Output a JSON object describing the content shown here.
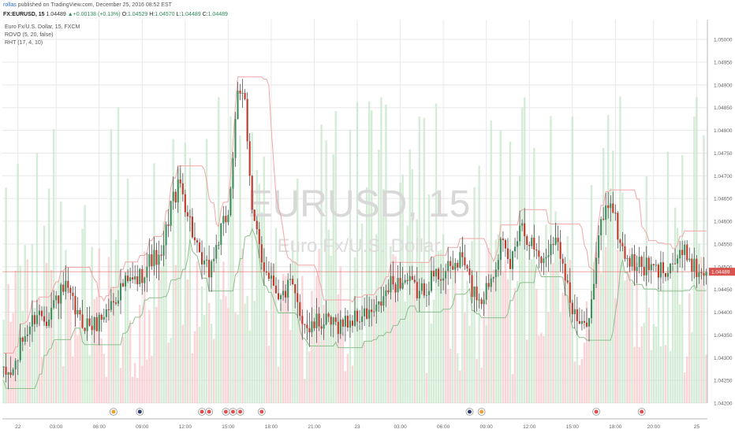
{
  "header": {
    "author": "rollas",
    "published": "published on TradingView.com, December 25, 2016 08:52 EST",
    "symbol": "FX:EURUSD, 15",
    "last": "1.04489",
    "change_arrow": "▲",
    "change": "+0.00138 (+0.13%)",
    "open_label": "O:",
    "open": "1.04529",
    "high_label": "H:",
    "high": "1.04570",
    "low_label": "L:",
    "low": "1.04489",
    "close_label": "C:",
    "close": "1.04489"
  },
  "legend": {
    "instrument": "Euro Fx/U.S. Dollar, 15, FXCM",
    "indicator1": "ROVO (5, 20, false)",
    "indicator2": "RHT (17, 4, 10)"
  },
  "watermark": {
    "line1": "EURUSD, 15",
    "line2": "Euro Fx/U.S. Dollar"
  },
  "colors": {
    "up": "#3d8f5c",
    "down": "#c0392b",
    "grid": "#e8e8e8",
    "vol_up": "#c7e6c9",
    "vol_down": "#f8c7c9",
    "price_tag": "#d9534f"
  },
  "chart_data": {
    "type": "candlestick",
    "ylim": [
      1.042,
      1.0504
    ],
    "y_ticks": [
      "1.04200",
      "1.04250",
      "1.04300",
      "1.04350",
      "1.04400",
      "1.04450",
      "1.04500",
      "1.04550",
      "1.04600",
      "1.04650",
      "1.04700",
      "1.04750",
      "1.04800",
      "1.04850",
      "1.04900",
      "1.04950",
      "1.05000"
    ],
    "current_price": "1.04489",
    "x_ticks": [
      "22",
      "03:00",
      "06:00",
      "09:00",
      "12:00",
      "15:00",
      "18:00",
      "21:00",
      "23",
      "03:00",
      "06:00",
      "09:00",
      "12:00",
      "15:00",
      "18:00",
      "20:00",
      "25"
    ],
    "x_tick_bars": [
      6,
      22,
      40,
      58,
      76,
      94,
      112,
      130,
      148,
      166,
      184,
      202,
      220,
      238,
      256,
      272,
      290
    ],
    "events": [
      {
        "bar": 46,
        "flag": "eu"
      },
      {
        "bar": 57,
        "flag": "jp"
      },
      {
        "bar": 83,
        "flag": "us"
      },
      {
        "bar": 86,
        "flag": "us"
      },
      {
        "bar": 93,
        "flag": "us"
      },
      {
        "bar": 96,
        "flag": "us"
      },
      {
        "bar": 99,
        "flag": "us"
      },
      {
        "bar": 108,
        "flag": "us"
      },
      {
        "bar": 195,
        "flag": "jp"
      },
      {
        "bar": 200,
        "flag": "eu"
      },
      {
        "bar": 248,
        "flag": "us"
      },
      {
        "bar": 267,
        "flag": "us"
      }
    ],
    "series_note": "candles generated from keypoints (bar index, close price)",
    "keypoints": [
      [
        0,
        1.0426
      ],
      [
        4,
        1.0427
      ],
      [
        8,
        1.0434
      ],
      [
        14,
        1.044
      ],
      [
        18,
        1.0439
      ],
      [
        22,
        1.0443
      ],
      [
        26,
        1.0445
      ],
      [
        32,
        1.0438
      ],
      [
        38,
        1.0437
      ],
      [
        44,
        1.0441
      ],
      [
        50,
        1.0446
      ],
      [
        56,
        1.0447
      ],
      [
        62,
        1.0452
      ],
      [
        66,
        1.0451
      ],
      [
        70,
        1.0464
      ],
      [
        74,
        1.0468
      ],
      [
        78,
        1.046
      ],
      [
        82,
        1.0451
      ],
      [
        86,
        1.0449
      ],
      [
        90,
        1.0456
      ],
      [
        94,
        1.0462
      ],
      [
        98,
        1.0487
      ],
      [
        101,
        1.0488
      ],
      [
        104,
        1.0462
      ],
      [
        108,
        1.0451
      ],
      [
        112,
        1.0448
      ],
      [
        116,
        1.0443
      ],
      [
        120,
        1.0446
      ],
      [
        124,
        1.044
      ],
      [
        128,
        1.0436
      ],
      [
        132,
        1.0438
      ],
      [
        138,
        1.0437
      ],
      [
        144,
        1.0438
      ],
      [
        150,
        1.0439
      ],
      [
        156,
        1.044
      ],
      [
        162,
        1.0446
      ],
      [
        168,
        1.0447
      ],
      [
        174,
        1.0444
      ],
      [
        180,
        1.0448
      ],
      [
        186,
        1.0449
      ],
      [
        192,
        1.0452
      ],
      [
        196,
        1.0445
      ],
      [
        200,
        1.0443
      ],
      [
        204,
        1.0448
      ],
      [
        208,
        1.0455
      ],
      [
        212,
        1.045
      ],
      [
        216,
        1.046
      ],
      [
        220,
        1.0456
      ],
      [
        226,
        1.0451
      ],
      [
        230,
        1.0457
      ],
      [
        234,
        1.0452
      ],
      [
        238,
        1.044
      ],
      [
        242,
        1.0436
      ],
      [
        246,
        1.0442
      ],
      [
        250,
        1.046
      ],
      [
        254,
        1.0465
      ],
      [
        258,
        1.0455
      ],
      [
        262,
        1.0451
      ],
      [
        268,
        1.045
      ],
      [
        274,
        1.0449
      ],
      [
        280,
        1.0451
      ],
      [
        286,
        1.0453
      ],
      [
        290,
        1.0449
      ]
    ]
  }
}
